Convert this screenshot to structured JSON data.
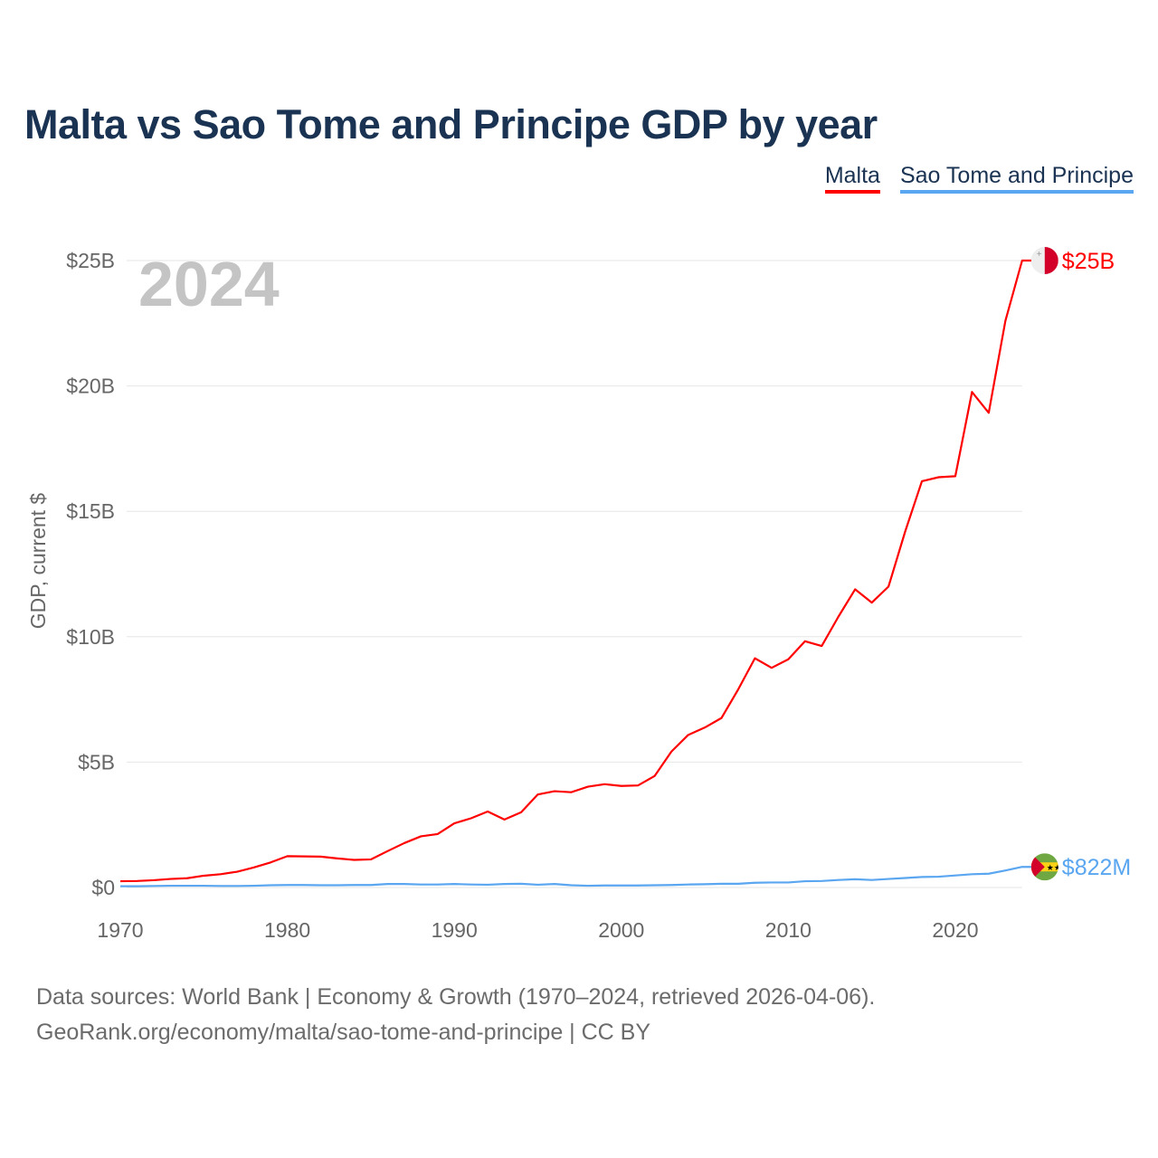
{
  "title": "Malta vs Sao Tome and Principe GDP by year",
  "legend": [
    "Malta",
    "Sao Tome and Principe"
  ],
  "footer": {
    "line1": "Data sources: World Bank | Economy & Growth (1970–2024, retrieved 2026-04-06).",
    "line2": "GeoRank.org/economy/malta/sao-tome-and-principe | CC BY"
  },
  "chart_data": {
    "type": "line",
    "title": "Malta vs Sao Tome and Principe GDP by year",
    "xlabel": "",
    "ylabel": "GDP, current $",
    "year_watermark": "2024",
    "xlim": [
      1970,
      2024
    ],
    "ylim": [
      0,
      25
    ],
    "x_ticks": [
      1970,
      1980,
      1990,
      2000,
      2010,
      2020
    ],
    "y_ticks": [
      0,
      5,
      10,
      15,
      20,
      25
    ],
    "y_tick_labels": [
      "$0",
      "$5B",
      "$10B",
      "$15B",
      "$20B",
      "$25B"
    ],
    "grid": true,
    "legend_position": "top-right",
    "units": "billion USD",
    "series": [
      {
        "name": "Malta",
        "color": "#ff0000",
        "end_label": "$25B",
        "flag": "malta-flag",
        "values": [
          0.25,
          0.26,
          0.29,
          0.34,
          0.37,
          0.47,
          0.53,
          0.63,
          0.8,
          1.0,
          1.25,
          1.24,
          1.23,
          1.16,
          1.1,
          1.12,
          1.45,
          1.77,
          2.04,
          2.13,
          2.56,
          2.76,
          3.03,
          2.71,
          3.0,
          3.71,
          3.84,
          3.8,
          4.02,
          4.12,
          4.05,
          4.07,
          4.45,
          5.42,
          6.08,
          6.38,
          6.76,
          7.9,
          9.14,
          8.76,
          9.1,
          9.82,
          9.63,
          10.8,
          11.89,
          11.36,
          12.0,
          14.2,
          16.2,
          16.36,
          16.4,
          19.76,
          18.93,
          22.6,
          25.0
        ]
      },
      {
        "name": "Sao Tome and Principe",
        "color": "#5aa6f0",
        "end_label": "$822M",
        "flag": "sao-tome-flag",
        "values": [
          0.05,
          0.05,
          0.06,
          0.07,
          0.07,
          0.07,
          0.06,
          0.06,
          0.07,
          0.09,
          0.1,
          0.1,
          0.09,
          0.09,
          0.1,
          0.1,
          0.14,
          0.14,
          0.12,
          0.12,
          0.14,
          0.12,
          0.11,
          0.14,
          0.15,
          0.11,
          0.14,
          0.09,
          0.07,
          0.08,
          0.08,
          0.08,
          0.09,
          0.1,
          0.12,
          0.13,
          0.15,
          0.15,
          0.19,
          0.2,
          0.2,
          0.25,
          0.26,
          0.3,
          0.33,
          0.3,
          0.34,
          0.38,
          0.42,
          0.43,
          0.48,
          0.53,
          0.55,
          0.68,
          0.822
        ]
      }
    ]
  }
}
